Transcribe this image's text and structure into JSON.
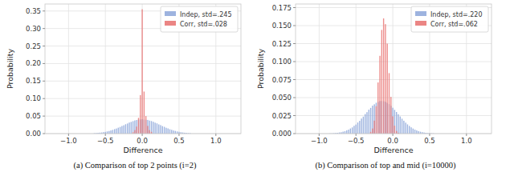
{
  "chart_data": [
    {
      "type": "histogram",
      "title": "(a) Comparison of top 2 points (i=2)",
      "xlabel": "Difference",
      "ylabel": "Probability",
      "bins": [
        -0.6625,
        -0.6375,
        -0.6125,
        -0.5875,
        -0.5625,
        -0.5375,
        -0.5125,
        -0.4875,
        -0.4625,
        -0.4375,
        -0.4125,
        -0.3875,
        -0.3625,
        -0.3375,
        -0.3125,
        -0.2875,
        -0.2625,
        -0.2375,
        -0.2125,
        -0.1875,
        -0.1625,
        -0.1375,
        -0.1125,
        -0.0875,
        -0.0625,
        -0.0375,
        -0.0125,
        0.0125,
        0.0375,
        0.0625,
        0.0875,
        0.1125,
        0.1375,
        0.1625,
        0.1875,
        0.2125,
        0.2375,
        0.2625,
        0.2875,
        0.3125,
        0.3375,
        0.3625,
        0.3875,
        0.4125,
        0.4375,
        0.4625,
        0.4875,
        0.5125,
        0.5375,
        0.5625,
        0.5875,
        0.6125,
        0.6375,
        0.6625
      ],
      "series": [
        {
          "name": "Indep, std=.245",
          "color": "#8ca6d9",
          "values": [
            0.0011,
            0.0016,
            0.0021,
            0.0027,
            0.0032,
            0.0041,
            0.0049,
            0.0063,
            0.0074,
            0.0091,
            0.0106,
            0.0127,
            0.0145,
            0.0169,
            0.019,
            0.0217,
            0.0238,
            0.0267,
            0.0288,
            0.0316,
            0.0334,
            0.0355,
            0.0376,
            0.0387,
            0.0401,
            0.0404,
            0.041,
            0.04,
            0.0395,
            0.039,
            0.0372,
            0.0358,
            0.0338,
            0.0312,
            0.0292,
            0.0263,
            0.0242,
            0.0214,
            0.0193,
            0.0167,
            0.0148,
            0.0124,
            0.0108,
            0.0089,
            0.0076,
            0.0061,
            0.0051,
            0.0039,
            0.0033,
            0.0025,
            0.002,
            0.0015,
            0.0012
          ]
        },
        {
          "name": "Corr, std=.028",
          "color": "#e8706f",
          "values": [
            0,
            0,
            0,
            0,
            0,
            0,
            0,
            0,
            0,
            0,
            0,
            0,
            0,
            0,
            0,
            0,
            0,
            0,
            0,
            0,
            0,
            0.004,
            0.01,
            0.02,
            0.045,
            0.11,
            0.355,
            0.12,
            0.05,
            0.022,
            0.01,
            0.005,
            0,
            0,
            0,
            0,
            0,
            0,
            0,
            0,
            0,
            0,
            0,
            0,
            0,
            0,
            0,
            0,
            0,
            0,
            0,
            0,
            0
          ]
        }
      ],
      "xlim": [
        -1.32,
        1.34
      ],
      "ylim": [
        0,
        0.37
      ],
      "xticks": [
        {
          "value": -1.0,
          "label": "−1.0"
        },
        {
          "value": -0.5,
          "label": "−0.5"
        },
        {
          "value": 0,
          "label": "0.0"
        },
        {
          "value": 0.5,
          "label": "0.5"
        },
        {
          "value": 1.0,
          "label": "1.0"
        }
      ],
      "yticks": [
        {
          "value": 0,
          "label": "0.00"
        },
        {
          "value": 0.05,
          "label": "0.05"
        },
        {
          "value": 0.1,
          "label": "0.10"
        },
        {
          "value": 0.15,
          "label": "0.15"
        },
        {
          "value": 0.2,
          "label": "0.20"
        },
        {
          "value": 0.25,
          "label": "0.25"
        },
        {
          "value": 0.3,
          "label": "0.30"
        },
        {
          "value": 0.35,
          "label": "0.35"
        }
      ],
      "grid": true,
      "legend": "upper right"
    },
    {
      "type": "histogram",
      "title": "(b) Comparison of top and mid (i=10000)",
      "xlabel": "Difference",
      "ylabel": "Probability",
      "bins": [
        -0.8625,
        -0.8375,
        -0.8125,
        -0.7875,
        -0.7625,
        -0.7375,
        -0.7125,
        -0.6875,
        -0.6625,
        -0.6375,
        -0.6125,
        -0.5875,
        -0.5625,
        -0.5375,
        -0.5125,
        -0.4875,
        -0.4625,
        -0.4375,
        -0.4125,
        -0.3875,
        -0.3625,
        -0.3375,
        -0.3125,
        -0.2875,
        -0.2625,
        -0.2375,
        -0.2125,
        -0.1875,
        -0.1625,
        -0.1375,
        -0.1125,
        -0.0875,
        -0.0625,
        -0.0375,
        -0.0125,
        0.0125,
        0.0375,
        0.0625,
        0.0875,
        0.1125,
        0.1375,
        0.1625,
        0.1875,
        0.2125,
        0.2375,
        0.2625,
        0.2875,
        0.3125,
        0.3375,
        0.3625,
        0.3875,
        0.4125,
        0.4375,
        0.4625,
        0.4875,
        0.5125,
        0.5375,
        0.5625
      ],
      "series": [
        {
          "name": "Indep, std=.220",
          "color": "#8ca6d9",
          "values": [
            0.0003,
            0.0004,
            0.0006,
            0.0009,
            0.0011,
            0.0016,
            0.0019,
            0.0027,
            0.0033,
            0.0045,
            0.0055,
            0.0071,
            0.0086,
            0.0108,
            0.0126,
            0.0154,
            0.0177,
            0.0209,
            0.0236,
            0.0271,
            0.0298,
            0.0332,
            0.0357,
            0.0388,
            0.0407,
            0.0429,
            0.0439,
            0.0452,
            0.0453,
            0.045,
            0.0441,
            0.0427,
            0.0409,
            0.0386,
            0.0359,
            0.033,
            0.03,
            0.0269,
            0.0238,
            0.0207,
            0.0179,
            0.0152,
            0.0128,
            0.0106,
            0.0087,
            0.007,
            0.0056,
            0.0044,
            0.0034,
            0.0026,
            0.002,
            0.0015,
            0.0011,
            0.0008,
            0.0006,
            0.0004,
            0.0003
          ]
        },
        {
          "name": "Corr, std=.062",
          "color": "#e8706f",
          "values": [
            0,
            0,
            0,
            0,
            0,
            0,
            0,
            0,
            0,
            0,
            0,
            0,
            0,
            0,
            0,
            0,
            0,
            0,
            0,
            0,
            0,
            0,
            0.0024,
            0.0071,
            0.018,
            0.038,
            0.071,
            0.108,
            0.144,
            0.16,
            0.152,
            0.125,
            0.084,
            0.051,
            0.024,
            0.011,
            0.0037,
            0.0011,
            0,
            0,
            0,
            0,
            0,
            0,
            0,
            0,
            0,
            0,
            0,
            0,
            0,
            0,
            0,
            0,
            0,
            0,
            0
          ]
        }
      ],
      "xlim": [
        -1.32,
        1.34
      ],
      "ylim": [
        0,
        0.18
      ],
      "xticks": [
        {
          "value": -1.0,
          "label": "−1.0"
        },
        {
          "value": -0.5,
          "label": "−0.5"
        },
        {
          "value": 0,
          "label": "0.0"
        },
        {
          "value": 0.5,
          "label": "0.5"
        },
        {
          "value": 1.0,
          "label": "1.0"
        }
      ],
      "yticks": [
        {
          "value": 0,
          "label": "0.000"
        },
        {
          "value": 0.025,
          "label": "0.025"
        },
        {
          "value": 0.05,
          "label": "0.050"
        },
        {
          "value": 0.075,
          "label": "0.075"
        },
        {
          "value": 0.1,
          "label": "0.100"
        },
        {
          "value": 0.125,
          "label": "0.125"
        },
        {
          "value": 0.15,
          "label": "0.150"
        },
        {
          "value": 0.175,
          "label": "0.175"
        }
      ],
      "grid": true,
      "legend": "upper right"
    }
  ]
}
